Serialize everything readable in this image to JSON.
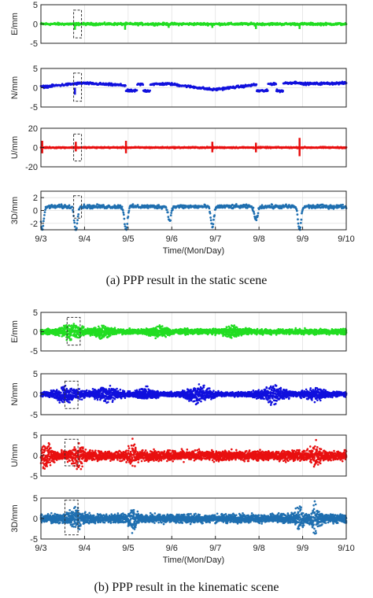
{
  "figure": {
    "caption_a": "(a) PPP result in the static scene",
    "caption_b": "(b) PPP result in the kinematic scene"
  },
  "chart_data": [
    {
      "type": "line",
      "group": "static",
      "ylabel": "E/mm",
      "yticks": [
        -5,
        0,
        5
      ],
      "ylim": [
        -5,
        5
      ],
      "xlim": [
        3,
        10
      ],
      "color": "#22dd22",
      "grid": true,
      "noise": 0.25,
      "spikes": [
        {
          "x": 3.78,
          "v": -1.5
        },
        {
          "x": 4.93,
          "v": -1.5
        },
        {
          "x": 5.93,
          "v": -1.0
        },
        {
          "x": 6.93,
          "v": -1.0
        },
        {
          "x": 7.93,
          "v": -1.3
        },
        {
          "x": 8.93,
          "v": -1.3
        }
      ],
      "highlight": {
        "x0": 3.75,
        "x1": 3.93,
        "y0": -3.6,
        "y1": 3.6
      }
    },
    {
      "type": "line",
      "group": "static",
      "ylabel": "N/mm",
      "yticks": [
        -5,
        0,
        5
      ],
      "ylim": [
        -5,
        5
      ],
      "xlim": [
        3,
        10
      ],
      "color": "#1010dd",
      "grid": true,
      "noise": 0.25,
      "segments": [
        {
          "x0": 3.0,
          "x1": 3.95,
          "v0": 0.2,
          "v1": 1.2
        },
        {
          "x0": 3.95,
          "x1": 4.95,
          "v0": 1.2,
          "v1": 0.6
        },
        {
          "x0": 4.95,
          "x1": 5.95,
          "v0": 0.8,
          "v1": 1.0
        },
        {
          "x0": 5.95,
          "x1": 6.95,
          "v0": 1.0,
          "v1": -0.5
        },
        {
          "x0": 6.95,
          "x1": 7.95,
          "v0": -0.5,
          "v1": 0.8
        },
        {
          "x0": 7.95,
          "x1": 8.95,
          "v0": 0.8,
          "v1": 1.4
        },
        {
          "x0": 8.95,
          "x1": 10.0,
          "v0": 1.0,
          "v1": 1.2
        }
      ],
      "drops": [
        {
          "x0": 4.95,
          "x1": 5.2,
          "v": -0.8
        },
        {
          "x0": 5.35,
          "x1": 5.5,
          "v": -0.8
        },
        {
          "x0": 7.95,
          "x1": 8.2,
          "v": -0.8
        },
        {
          "x0": 8.4,
          "x1": 8.55,
          "v": -0.8
        }
      ],
      "spikes": [
        {
          "x": 3.78,
          "v": -1.8
        }
      ],
      "highlight": {
        "x0": 3.75,
        "x1": 3.93,
        "y0": -3.5,
        "y1": 3.8
      }
    },
    {
      "type": "line",
      "group": "static",
      "ylabel": "U/mm",
      "yticks": [
        -20,
        0,
        20
      ],
      "ylim": [
        -20,
        20
      ],
      "xlim": [
        3,
        10
      ],
      "color": "#e81010",
      "grid": true,
      "noise": 0.5,
      "spikes": [
        {
          "x": 3.03,
          "v": 7
        },
        {
          "x": 3.03,
          "v": -6
        },
        {
          "x": 3.8,
          "v": 6
        },
        {
          "x": 3.8,
          "v": -4
        },
        {
          "x": 4.95,
          "v": 7
        },
        {
          "x": 4.95,
          "v": -6
        },
        {
          "x": 6.93,
          "v": 6
        },
        {
          "x": 6.93,
          "v": -5
        },
        {
          "x": 7.93,
          "v": 5
        },
        {
          "x": 7.93,
          "v": -5
        },
        {
          "x": 8.93,
          "v": 10
        },
        {
          "x": 8.93,
          "v": -9
        }
      ],
      "highlight": {
        "x0": 3.75,
        "x1": 3.93,
        "y0": -14,
        "y1": 14
      }
    },
    {
      "type": "line",
      "group": "static",
      "ylabel": "3D/mm",
      "yticks": [
        -2,
        0,
        2
      ],
      "ylim": [
        -3,
        3
      ],
      "xlim": [
        3,
        10
      ],
      "color": "#1f6fb0",
      "grid": true,
      "noise": 0.25,
      "baseline": 0.6,
      "dips": [
        {
          "x": 3.03,
          "v": -3
        },
        {
          "x": 3.8,
          "v": -3
        },
        {
          "x": 4.95,
          "v": -3
        },
        {
          "x": 5.95,
          "v": -1.5
        },
        {
          "x": 6.93,
          "v": -2.5
        },
        {
          "x": 7.93,
          "v": -1.5
        },
        {
          "x": 8.93,
          "v": -3
        }
      ],
      "highlight": {
        "x0": 3.75,
        "x1": 3.93,
        "y0": -1.2,
        "y1": 2.3
      },
      "xticks": [
        "9/3",
        "9/4",
        "9/5",
        "9/6",
        "9/7",
        "9/8",
        "9/9",
        "9/10"
      ],
      "xlabel": "Time/(Mon/Day)"
    },
    {
      "type": "scatter",
      "group": "kinematic",
      "ylabel": "E/mm",
      "yticks": [
        -5,
        0,
        5
      ],
      "ylim": [
        -5,
        5
      ],
      "xlim": [
        3,
        10
      ],
      "color": "#22dd22",
      "grid": true,
      "amplitude": 1.0,
      "lobes": [
        {
          "x": 3.7,
          "w": 0.25,
          "a": 2.2
        },
        {
          "x": 4.4,
          "w": 0.2,
          "a": 2.0
        },
        {
          "x": 5.7,
          "w": 0.2,
          "a": 1.6
        },
        {
          "x": 7.4,
          "w": 0.2,
          "a": 1.5
        }
      ],
      "highlight": {
        "x0": 3.6,
        "x1": 3.9,
        "y0": -3.5,
        "y1": 3.7
      }
    },
    {
      "type": "scatter",
      "group": "kinematic",
      "ylabel": "N/mm",
      "yticks": [
        -5,
        0,
        5
      ],
      "ylim": [
        -5,
        5
      ],
      "xlim": [
        3,
        10
      ],
      "color": "#1010dd",
      "grid": true,
      "amplitude": 0.8,
      "lobes": [
        {
          "x": 3.6,
          "w": 0.3,
          "a": 2.3
        },
        {
          "x": 4.5,
          "w": 0.3,
          "a": 2.0
        },
        {
          "x": 5.4,
          "w": 0.2,
          "a": 1.8
        },
        {
          "x": 6.6,
          "w": 0.3,
          "a": 2.4
        },
        {
          "x": 8.3,
          "w": 0.3,
          "a": 2.4
        },
        {
          "x": 9.3,
          "w": 0.25,
          "a": 1.5
        }
      ],
      "highlight": {
        "x0": 3.55,
        "x1": 3.85,
        "y0": -3.5,
        "y1": 3.2
      }
    },
    {
      "type": "scatter",
      "group": "kinematic",
      "ylabel": "U/mm",
      "yticks": [
        -5,
        0,
        5
      ],
      "ylim": [
        -5,
        5
      ],
      "xlim": [
        3,
        10
      ],
      "color": "#e81010",
      "grid": true,
      "amplitude": 1.8,
      "lobes": [
        {
          "x": 3.1,
          "w": 0.15,
          "a": 3.5
        },
        {
          "x": 3.85,
          "w": 0.15,
          "a": 3.0
        },
        {
          "x": 5.1,
          "w": 0.1,
          "a": 3.5
        },
        {
          "x": 9.3,
          "w": 0.1,
          "a": 3.5
        }
      ],
      "highlight": {
        "x0": 3.55,
        "x1": 3.85,
        "y0": -2.5,
        "y1": 4.0
      }
    },
    {
      "type": "scatter",
      "group": "kinematic",
      "ylabel": "3D/mm",
      "yticks": [
        -5,
        0,
        5
      ],
      "ylim": [
        -5,
        5
      ],
      "xlim": [
        3,
        10
      ],
      "color": "#1f6fb0",
      "grid": true,
      "amplitude": 1.6,
      "lobes": [
        {
          "x": 3.8,
          "w": 0.15,
          "a": 3.0
        },
        {
          "x": 5.1,
          "w": 0.1,
          "a": 3.0
        },
        {
          "x": 8.9,
          "w": 0.1,
          "a": 3.5
        },
        {
          "x": 9.3,
          "w": 0.1,
          "a": 4.0
        }
      ],
      "highlight": {
        "x0": 3.55,
        "x1": 3.85,
        "y0": -4.0,
        "y1": 4.5
      },
      "xticks": [
        "9/3",
        "9/4",
        "9/5",
        "9/6",
        "9/7",
        "9/8",
        "9/9",
        "9/10"
      ],
      "xlabel": "Time/(Mon/Day)"
    }
  ]
}
